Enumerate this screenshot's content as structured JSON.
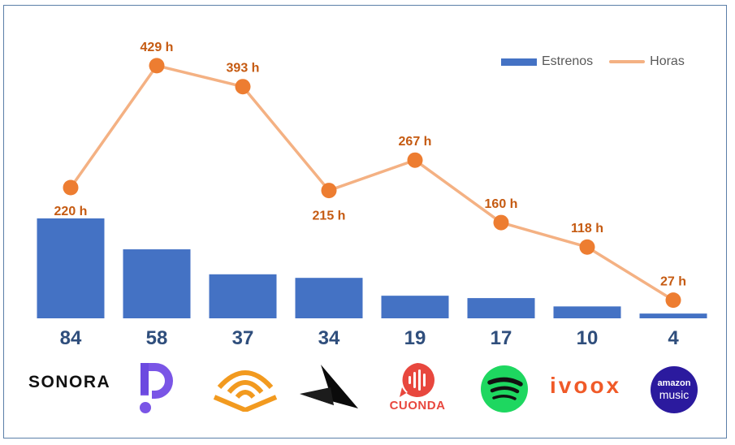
{
  "chart_data": {
    "type": "bar",
    "categories": [
      "SONORA",
      "Podimo",
      "Audible",
      "Podium",
      "CUONDA",
      "Spotify",
      "ivoox",
      "amazon music"
    ],
    "series": [
      {
        "name": "Estrenos",
        "values": [
          84,
          58,
          37,
          34,
          19,
          17,
          10,
          4
        ],
        "color": "#4472c4"
      },
      {
        "name": "Horas",
        "values": [
          220,
          429,
          393,
          215,
          267,
          160,
          118,
          27
        ],
        "color": "#f4b183",
        "marker_color": "#ed7d31"
      }
    ],
    "value_labels_bars": [
      "84",
      "58",
      "37",
      "34",
      "19",
      "17",
      "10",
      "4"
    ],
    "value_labels_line": [
      "220 h",
      "429 h",
      "393 h",
      "215 h",
      "267 h",
      "160 h",
      "118 h",
      "27 h"
    ],
    "legend": {
      "placement": "top-right",
      "bar_label": "Estrenos",
      "line_label": "Horas"
    },
    "logos": {
      "sonora": "SONORA",
      "cuonda": "CUONDA",
      "ivoox": "ivoox",
      "amazon_top": "amazon",
      "amazon_bottom": "music"
    },
    "grid": false,
    "title": "",
    "xlabel": "",
    "ylabel": ""
  }
}
